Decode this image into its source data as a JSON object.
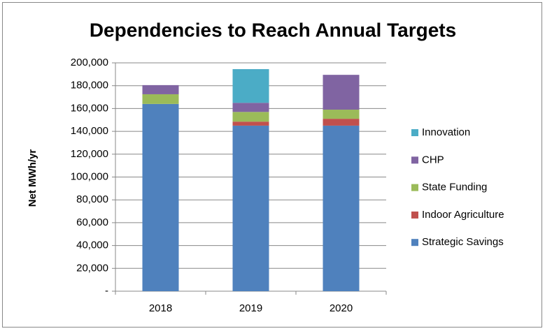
{
  "chart_data": {
    "type": "stacked_bar",
    "title": "Dependencies to Reach Annual Targets",
    "y_label": "Net MWh/yr",
    "categories": [
      "2018",
      "2019",
      "2020"
    ],
    "series": [
      {
        "name": "Strategic Savings",
        "color": "#4f81bd",
        "values": [
          164000,
          145000,
          145000
        ]
      },
      {
        "name": "Indoor Agriculture",
        "color": "#c0504d",
        "values": [
          0,
          3500,
          6000
        ]
      },
      {
        "name": "State Funding",
        "color": "#9bbb59",
        "values": [
          8500,
          8500,
          8000
        ]
      },
      {
        "name": "CHP",
        "color": "#8064a2",
        "values": [
          8000,
          8000,
          30500
        ]
      },
      {
        "name": "Innovation",
        "color": "#4bacc6",
        "values": [
          0,
          29500,
          0
        ]
      }
    ],
    "ylim": [
      0,
      200000
    ],
    "yticks": [
      {
        "value": 0,
        "label": "-"
      },
      {
        "value": 20000,
        "label": "20,000"
      },
      {
        "value": 40000,
        "label": "40,000"
      },
      {
        "value": 60000,
        "label": "60,000"
      },
      {
        "value": 80000,
        "label": "80,000"
      },
      {
        "value": 100000,
        "label": "100,000"
      },
      {
        "value": 120000,
        "label": "120,000"
      },
      {
        "value": 140000,
        "label": "140,000"
      },
      {
        "value": 160000,
        "label": "160,000"
      },
      {
        "value": 180000,
        "label": "180,000"
      },
      {
        "value": 200000,
        "label": "200,000"
      }
    ],
    "grid": true,
    "legend": "right"
  }
}
